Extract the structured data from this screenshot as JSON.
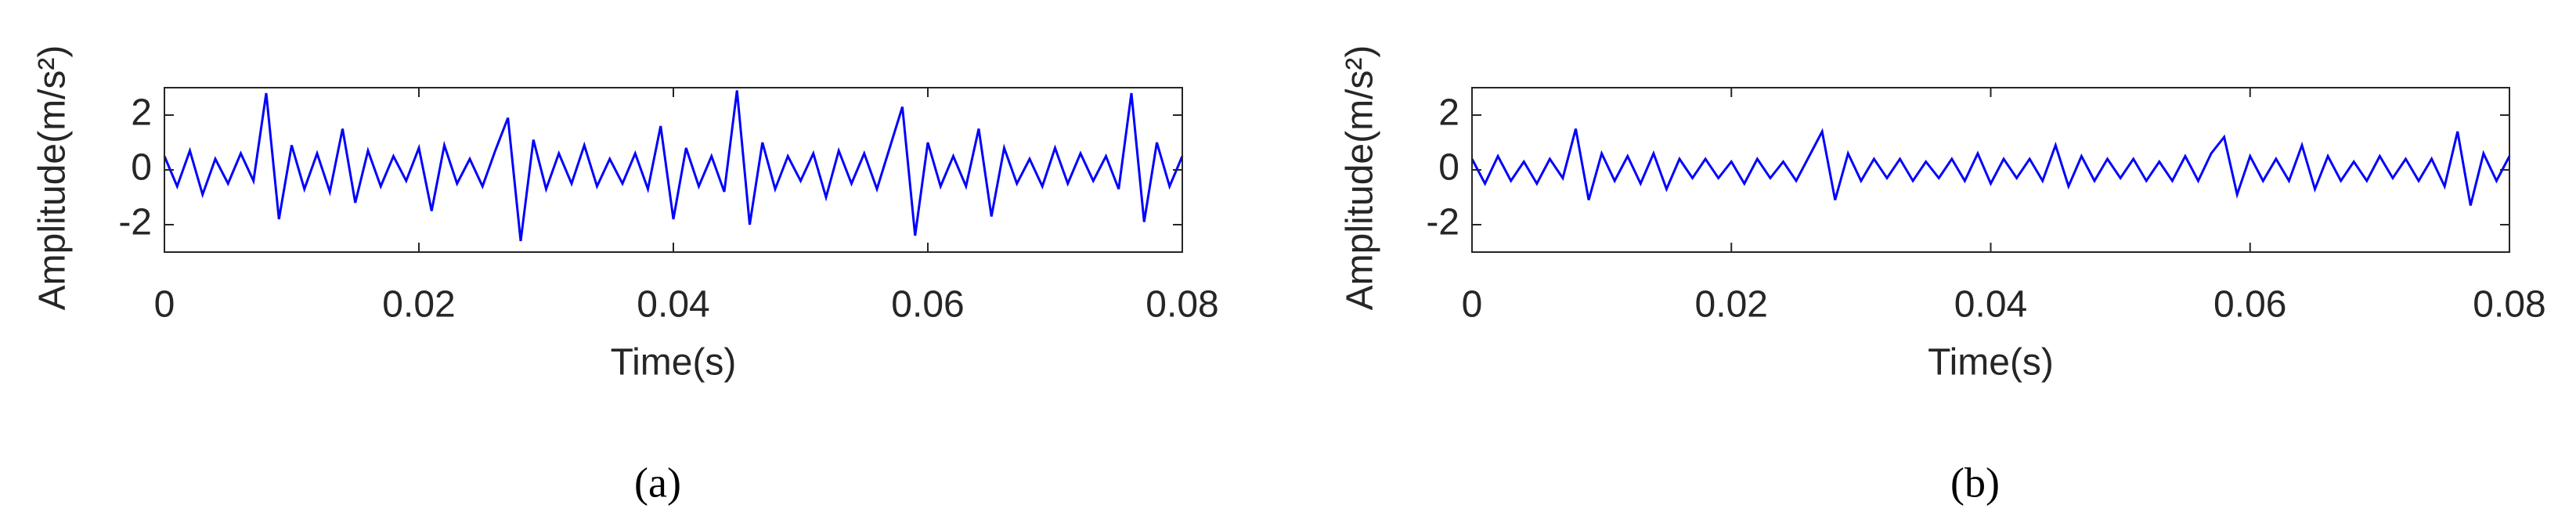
{
  "chart_data": [
    {
      "type": "line",
      "caption": "(a)",
      "xlabel": "Time(s)",
      "ylabel": "Amplitude(m/s²)",
      "color": "#0000ff",
      "xlim": [
        0,
        0.08
      ],
      "xticks": [
        0,
        0.02,
        0.04,
        0.06,
        0.08
      ],
      "ylim": [
        -3,
        3
      ],
      "yticks": [
        -2,
        0,
        2
      ],
      "grid": false,
      "x": [
        0,
        0.001,
        0.002,
        0.003,
        0.004,
        0.005,
        0.006,
        0.007,
        0.008,
        0.009,
        0.01,
        0.011,
        0.012,
        0.013,
        0.014,
        0.015,
        0.016,
        0.017,
        0.018,
        0.019,
        0.02,
        0.021,
        0.022,
        0.023,
        0.024,
        0.025,
        0.026,
        0.027,
        0.028,
        0.029,
        0.03,
        0.031,
        0.032,
        0.033,
        0.034,
        0.035,
        0.036,
        0.037,
        0.038,
        0.039,
        0.04,
        0.041,
        0.042,
        0.043,
        0.044,
        0.045,
        0.046,
        0.047,
        0.048,
        0.049,
        0.05,
        0.051,
        0.052,
        0.053,
        0.054,
        0.055,
        0.056,
        0.057,
        0.058,
        0.059,
        0.06,
        0.061,
        0.062,
        0.063,
        0.064,
        0.065,
        0.066,
        0.067,
        0.068,
        0.069,
        0.07,
        0.071,
        0.072,
        0.073,
        0.074,
        0.075,
        0.076,
        0.077,
        0.078,
        0.079,
        0.08
      ],
      "values": [
        0.5,
        -0.6,
        0.7,
        -0.9,
        0.4,
        -0.5,
        0.6,
        -0.4,
        2.8,
        -1.8,
        0.9,
        -0.7,
        0.6,
        -0.8,
        1.5,
        -1.2,
        0.7,
        -0.6,
        0.5,
        -0.4,
        0.8,
        -1.5,
        0.9,
        -0.5,
        0.4,
        -0.6,
        0.7,
        1.9,
        -2.6,
        1.1,
        -0.7,
        0.6,
        -0.5,
        0.9,
        -0.6,
        0.4,
        -0.5,
        0.6,
        -0.7,
        1.6,
        -1.8,
        0.8,
        -0.6,
        0.5,
        -0.8,
        2.9,
        -2.0,
        1.0,
        -0.7,
        0.5,
        -0.4,
        0.6,
        -1.0,
        0.7,
        -0.5,
        0.6,
        -0.7,
        0.8,
        2.3,
        -2.4,
        1.0,
        -0.6,
        0.5,
        -0.6,
        1.5,
        -1.7,
        0.8,
        -0.5,
        0.4,
        -0.6,
        0.8,
        -0.5,
        0.6,
        -0.4,
        0.5,
        -0.7,
        2.8,
        -1.9,
        1.0,
        -0.6,
        0.5
      ]
    },
    {
      "type": "line",
      "caption": "(b)",
      "xlabel": "Time(s)",
      "ylabel": "Amplitude(m/s²)",
      "color": "#0000ff",
      "xlim": [
        0,
        0.08
      ],
      "xticks": [
        0,
        0.02,
        0.04,
        0.06,
        0.08
      ],
      "ylim": [
        -3,
        3
      ],
      "yticks": [
        -2,
        0,
        2
      ],
      "grid": false,
      "x": [
        0,
        0.001,
        0.002,
        0.003,
        0.004,
        0.005,
        0.006,
        0.007,
        0.008,
        0.009,
        0.01,
        0.011,
        0.012,
        0.013,
        0.014,
        0.015,
        0.016,
        0.017,
        0.018,
        0.019,
        0.02,
        0.021,
        0.022,
        0.023,
        0.024,
        0.025,
        0.026,
        0.027,
        0.028,
        0.029,
        0.03,
        0.031,
        0.032,
        0.033,
        0.034,
        0.035,
        0.036,
        0.037,
        0.038,
        0.039,
        0.04,
        0.041,
        0.042,
        0.043,
        0.044,
        0.045,
        0.046,
        0.047,
        0.048,
        0.049,
        0.05,
        0.051,
        0.052,
        0.053,
        0.054,
        0.055,
        0.056,
        0.057,
        0.058,
        0.059,
        0.06,
        0.061,
        0.062,
        0.063,
        0.064,
        0.065,
        0.066,
        0.067,
        0.068,
        0.069,
        0.07,
        0.071,
        0.072,
        0.073,
        0.074,
        0.075,
        0.076,
        0.077,
        0.078,
        0.079,
        0.08
      ],
      "values": [
        0.4,
        -0.5,
        0.5,
        -0.4,
        0.3,
        -0.5,
        0.4,
        -0.3,
        1.5,
        -1.1,
        0.6,
        -0.4,
        0.5,
        -0.5,
        0.6,
        -0.7,
        0.4,
        -0.3,
        0.4,
        -0.3,
        0.3,
        -0.5,
        0.4,
        -0.3,
        0.3,
        -0.4,
        0.5,
        1.4,
        -1.1,
        0.6,
        -0.4,
        0.4,
        -0.3,
        0.4,
        -0.4,
        0.3,
        -0.3,
        0.4,
        -0.4,
        0.6,
        -0.5,
        0.4,
        -0.3,
        0.4,
        -0.4,
        0.9,
        -0.6,
        0.5,
        -0.4,
        0.4,
        -0.3,
        0.4,
        -0.4,
        0.3,
        -0.4,
        0.5,
        -0.4,
        0.6,
        1.2,
        -0.9,
        0.5,
        -0.4,
        0.4,
        -0.4,
        0.9,
        -0.7,
        0.5,
        -0.4,
        0.3,
        -0.4,
        0.5,
        -0.3,
        0.4,
        -0.4,
        0.4,
        -0.6,
        1.4,
        -1.3,
        0.6,
        -0.4,
        0.5
      ]
    }
  ]
}
